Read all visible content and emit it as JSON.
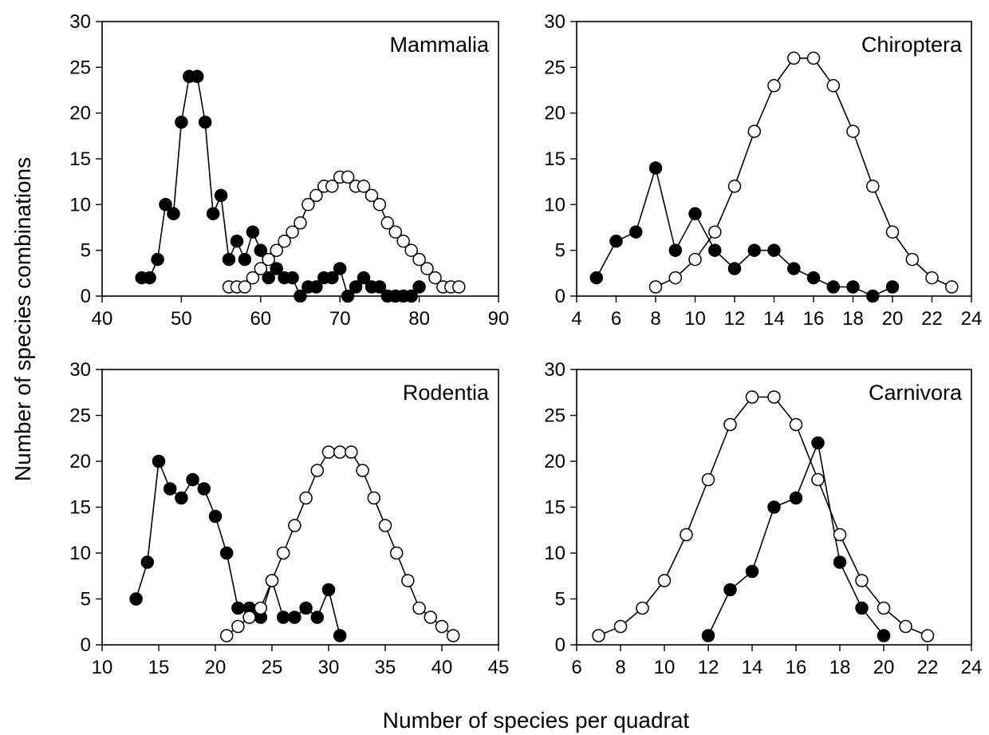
{
  "figure": {
    "ylabel": "Number of species combinations",
    "xlabel": "Number of species per quadrat"
  },
  "chart_data": [
    {
      "type": "line",
      "title": "Mammalia",
      "xlim": [
        40,
        90
      ],
      "ylim": [
        0,
        30
      ],
      "xticks": [
        40,
        50,
        60,
        70,
        80,
        90
      ],
      "yticks": [
        0,
        5,
        10,
        15,
        20,
        25,
        30
      ],
      "series": [
        {
          "marker": "filled",
          "points": [
            [
              45,
              2
            ],
            [
              46,
              2
            ],
            [
              47,
              4
            ],
            [
              48,
              10
            ],
            [
              49,
              9
            ],
            [
              50,
              19
            ],
            [
              51,
              24
            ],
            [
              52,
              24
            ],
            [
              53,
              19
            ],
            [
              54,
              9
            ],
            [
              55,
              11
            ],
            [
              56,
              4
            ],
            [
              57,
              6
            ],
            [
              58,
              4
            ],
            [
              59,
              7
            ],
            [
              60,
              5
            ],
            [
              61,
              2
            ],
            [
              62,
              3
            ],
            [
              63,
              2
            ],
            [
              64,
              2
            ],
            [
              65,
              0
            ],
            [
              66,
              1
            ],
            [
              67,
              1
            ],
            [
              68,
              2
            ],
            [
              69,
              2
            ],
            [
              70,
              3
            ],
            [
              71,
              0
            ],
            [
              72,
              1
            ],
            [
              73,
              2
            ],
            [
              74,
              1
            ],
            [
              75,
              1
            ],
            [
              76,
              0
            ],
            [
              77,
              0
            ],
            [
              78,
              0
            ],
            [
              79,
              0
            ],
            [
              80,
              1
            ]
          ]
        },
        {
          "marker": "open",
          "points": [
            [
              56,
              1
            ],
            [
              57,
              1
            ],
            [
              58,
              1
            ],
            [
              59,
              2
            ],
            [
              60,
              3
            ],
            [
              61,
              4
            ],
            [
              62,
              5
            ],
            [
              63,
              6
            ],
            [
              64,
              7
            ],
            [
              65,
              8
            ],
            [
              66,
              10
            ],
            [
              67,
              11
            ],
            [
              68,
              12
            ],
            [
              69,
              12
            ],
            [
              70,
              13
            ],
            [
              71,
              13
            ],
            [
              72,
              12
            ],
            [
              73,
              12
            ],
            [
              74,
              11
            ],
            [
              75,
              10
            ],
            [
              76,
              8
            ],
            [
              77,
              7
            ],
            [
              78,
              6
            ],
            [
              79,
              5
            ],
            [
              80,
              4
            ],
            [
              81,
              3
            ],
            [
              82,
              2
            ],
            [
              83,
              1
            ],
            [
              84,
              1
            ],
            [
              85,
              1
            ]
          ]
        }
      ]
    },
    {
      "type": "line",
      "title": "Chiroptera",
      "xlim": [
        4,
        24
      ],
      "ylim": [
        0,
        30
      ],
      "xticks": [
        4,
        6,
        8,
        10,
        12,
        14,
        16,
        18,
        20,
        22,
        24
      ],
      "yticks": [
        0,
        5,
        10,
        15,
        20,
        25,
        30
      ],
      "series": [
        {
          "marker": "filled",
          "points": [
            [
              5,
              2
            ],
            [
              6,
              6
            ],
            [
              7,
              7
            ],
            [
              8,
              14
            ],
            [
              9,
              5
            ],
            [
              10,
              9
            ],
            [
              11,
              5
            ],
            [
              12,
              3
            ],
            [
              13,
              5
            ],
            [
              14,
              5
            ],
            [
              15,
              3
            ],
            [
              16,
              2
            ],
            [
              17,
              1
            ],
            [
              18,
              1
            ],
            [
              19,
              0
            ],
            [
              20,
              1
            ]
          ]
        },
        {
          "marker": "open",
          "points": [
            [
              8,
              1
            ],
            [
              9,
              2
            ],
            [
              10,
              4
            ],
            [
              11,
              7
            ],
            [
              12,
              12
            ],
            [
              13,
              18
            ],
            [
              14,
              23
            ],
            [
              15,
              26
            ],
            [
              16,
              26
            ],
            [
              17,
              23
            ],
            [
              18,
              18
            ],
            [
              19,
              12
            ],
            [
              20,
              7
            ],
            [
              21,
              4
            ],
            [
              22,
              2
            ],
            [
              23,
              1
            ]
          ]
        }
      ]
    },
    {
      "type": "line",
      "title": "Rodentia",
      "xlim": [
        10,
        45
      ],
      "ylim": [
        0,
        30
      ],
      "xticks": [
        10,
        15,
        20,
        25,
        30,
        35,
        40,
        45
      ],
      "yticks": [
        0,
        5,
        10,
        15,
        20,
        25,
        30
      ],
      "series": [
        {
          "marker": "filled",
          "points": [
            [
              13,
              5
            ],
            [
              14,
              9
            ],
            [
              15,
              20
            ],
            [
              16,
              17
            ],
            [
              17,
              16
            ],
            [
              18,
              18
            ],
            [
              19,
              17
            ],
            [
              20,
              14
            ],
            [
              21,
              10
            ],
            [
              22,
              4
            ],
            [
              23,
              4
            ],
            [
              24,
              3
            ],
            [
              25,
              7
            ],
            [
              26,
              3
            ],
            [
              27,
              3
            ],
            [
              28,
              4
            ],
            [
              29,
              3
            ],
            [
              30,
              6
            ],
            [
              31,
              1
            ]
          ]
        },
        {
          "marker": "open",
          "points": [
            [
              21,
              1
            ],
            [
              22,
              2
            ],
            [
              23,
              3
            ],
            [
              24,
              4
            ],
            [
              25,
              7
            ],
            [
              26,
              10
            ],
            [
              27,
              13
            ],
            [
              28,
              16
            ],
            [
              29,
              19
            ],
            [
              30,
              21
            ],
            [
              31,
              21
            ],
            [
              32,
              21
            ],
            [
              33,
              19
            ],
            [
              34,
              16
            ],
            [
              35,
              13
            ],
            [
              36,
              10
            ],
            [
              37,
              7
            ],
            [
              38,
              4
            ],
            [
              39,
              3
            ],
            [
              40,
              2
            ],
            [
              41,
              1
            ]
          ]
        }
      ]
    },
    {
      "type": "line",
      "title": "Carnivora",
      "xlim": [
        6,
        24
      ],
      "ylim": [
        0,
        30
      ],
      "xticks": [
        6,
        8,
        10,
        12,
        14,
        16,
        18,
        20,
        22,
        24
      ],
      "yticks": [
        0,
        5,
        10,
        15,
        20,
        25,
        30
      ],
      "series": [
        {
          "marker": "filled",
          "points": [
            [
              12,
              1
            ],
            [
              13,
              6
            ],
            [
              14,
              8
            ],
            [
              15,
              15
            ],
            [
              16,
              16
            ],
            [
              17,
              22
            ],
            [
              18,
              9
            ],
            [
              19,
              4
            ],
            [
              20,
              1
            ]
          ]
        },
        {
          "marker": "open",
          "points": [
            [
              7,
              1
            ],
            [
              8,
              2
            ],
            [
              9,
              4
            ],
            [
              10,
              7
            ],
            [
              11,
              12
            ],
            [
              12,
              18
            ],
            [
              13,
              24
            ],
            [
              14,
              27
            ],
            [
              15,
              27
            ],
            [
              16,
              24
            ],
            [
              17,
              18
            ],
            [
              18,
              12
            ],
            [
              19,
              7
            ],
            [
              20,
              4
            ],
            [
              21,
              2
            ],
            [
              22,
              1
            ]
          ]
        }
      ]
    }
  ]
}
